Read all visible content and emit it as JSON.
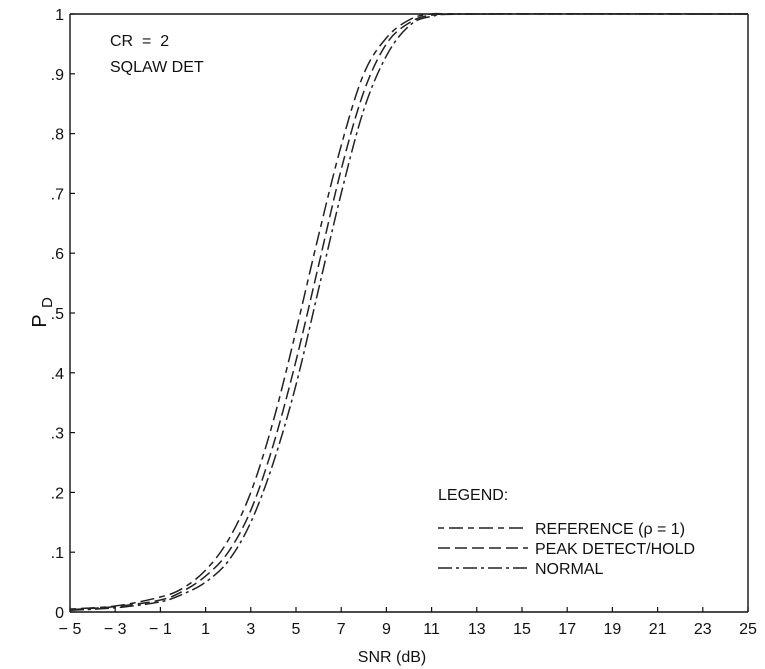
{
  "chart_data": {
    "type": "line",
    "title": "",
    "xlabel": "SNR (dB)",
    "ylabel_main": "P",
    "ylabel_sub": "D",
    "xlim": [
      -5,
      25
    ],
    "ylim": [
      0,
      1
    ],
    "x_ticks": [
      {
        "v": -5,
        "label": "− 5"
      },
      {
        "v": -3,
        "label": "− 3"
      },
      {
        "v": -1,
        "label": "− 1"
      },
      {
        "v": 1,
        "label": "1"
      },
      {
        "v": 3,
        "label": "3"
      },
      {
        "v": 5,
        "label": "5"
      },
      {
        "v": 7,
        "label": "7"
      },
      {
        "v": 9,
        "label": "9"
      },
      {
        "v": 11,
        "label": "11"
      },
      {
        "v": 13,
        "label": "13"
      },
      {
        "v": 15,
        "label": "15"
      },
      {
        "v": 17,
        "label": "17"
      },
      {
        "v": 19,
        "label": "19"
      },
      {
        "v": 21,
        "label": "21"
      },
      {
        "v": 23,
        "label": "23"
      },
      {
        "v": 25,
        "label": "25"
      }
    ],
    "y_ticks": [
      {
        "v": 0,
        "label": "0"
      },
      {
        "v": 0.1,
        "label": ".1"
      },
      {
        "v": 0.2,
        "label": ".2"
      },
      {
        "v": 0.3,
        "label": ".3"
      },
      {
        "v": 0.4,
        "label": ".4"
      },
      {
        "v": 0.5,
        "label": ".5"
      },
      {
        "v": 0.6,
        "label": ".6"
      },
      {
        "v": 0.7,
        "label": ".7"
      },
      {
        "v": 0.8,
        "label": ".8"
      },
      {
        "v": 0.9,
        "label": ".9"
      },
      {
        "v": 1,
        "label": "1"
      }
    ],
    "annotation_lines": [
      "CR  =  2",
      "SQLAW DET"
    ],
    "legend_title": "LEGEND:",
    "legend_position": "lower-right",
    "grid": false,
    "series": [
      {
        "name": "REFERENCE (ρ = 1)",
        "dash": "6 5 14 5",
        "x": [
          -5,
          -3,
          -1,
          0,
          1,
          2,
          3,
          4,
          5,
          6,
          7,
          8,
          9,
          10,
          11,
          13,
          25
        ],
        "y": [
          0.005,
          0.01,
          0.025,
          0.04,
          0.07,
          0.12,
          0.2,
          0.32,
          0.47,
          0.63,
          0.78,
          0.9,
          0.96,
          0.99,
          1.0,
          1.0,
          1.0
        ]
      },
      {
        "name": "PEAK DETECT/HOLD",
        "dash": "12 5",
        "x": [
          -5,
          -3,
          -1,
          0,
          1,
          2,
          3,
          4,
          5,
          6,
          7,
          8,
          9,
          10,
          11,
          13,
          25
        ],
        "y": [
          0.004,
          0.009,
          0.02,
          0.035,
          0.06,
          0.1,
          0.17,
          0.28,
          0.42,
          0.58,
          0.74,
          0.87,
          0.95,
          0.985,
          0.998,
          1.0,
          1.0
        ]
      },
      {
        "name": "NORMAL",
        "dash": "14 4 3 4",
        "x": [
          -5,
          -3,
          -1,
          0,
          1,
          2,
          3,
          4,
          5,
          6,
          7,
          8,
          9,
          10,
          11,
          13,
          25
        ],
        "y": [
          0.003,
          0.007,
          0.017,
          0.03,
          0.05,
          0.085,
          0.15,
          0.25,
          0.38,
          0.54,
          0.7,
          0.84,
          0.93,
          0.98,
          0.996,
          1.0,
          1.0
        ]
      }
    ]
  }
}
